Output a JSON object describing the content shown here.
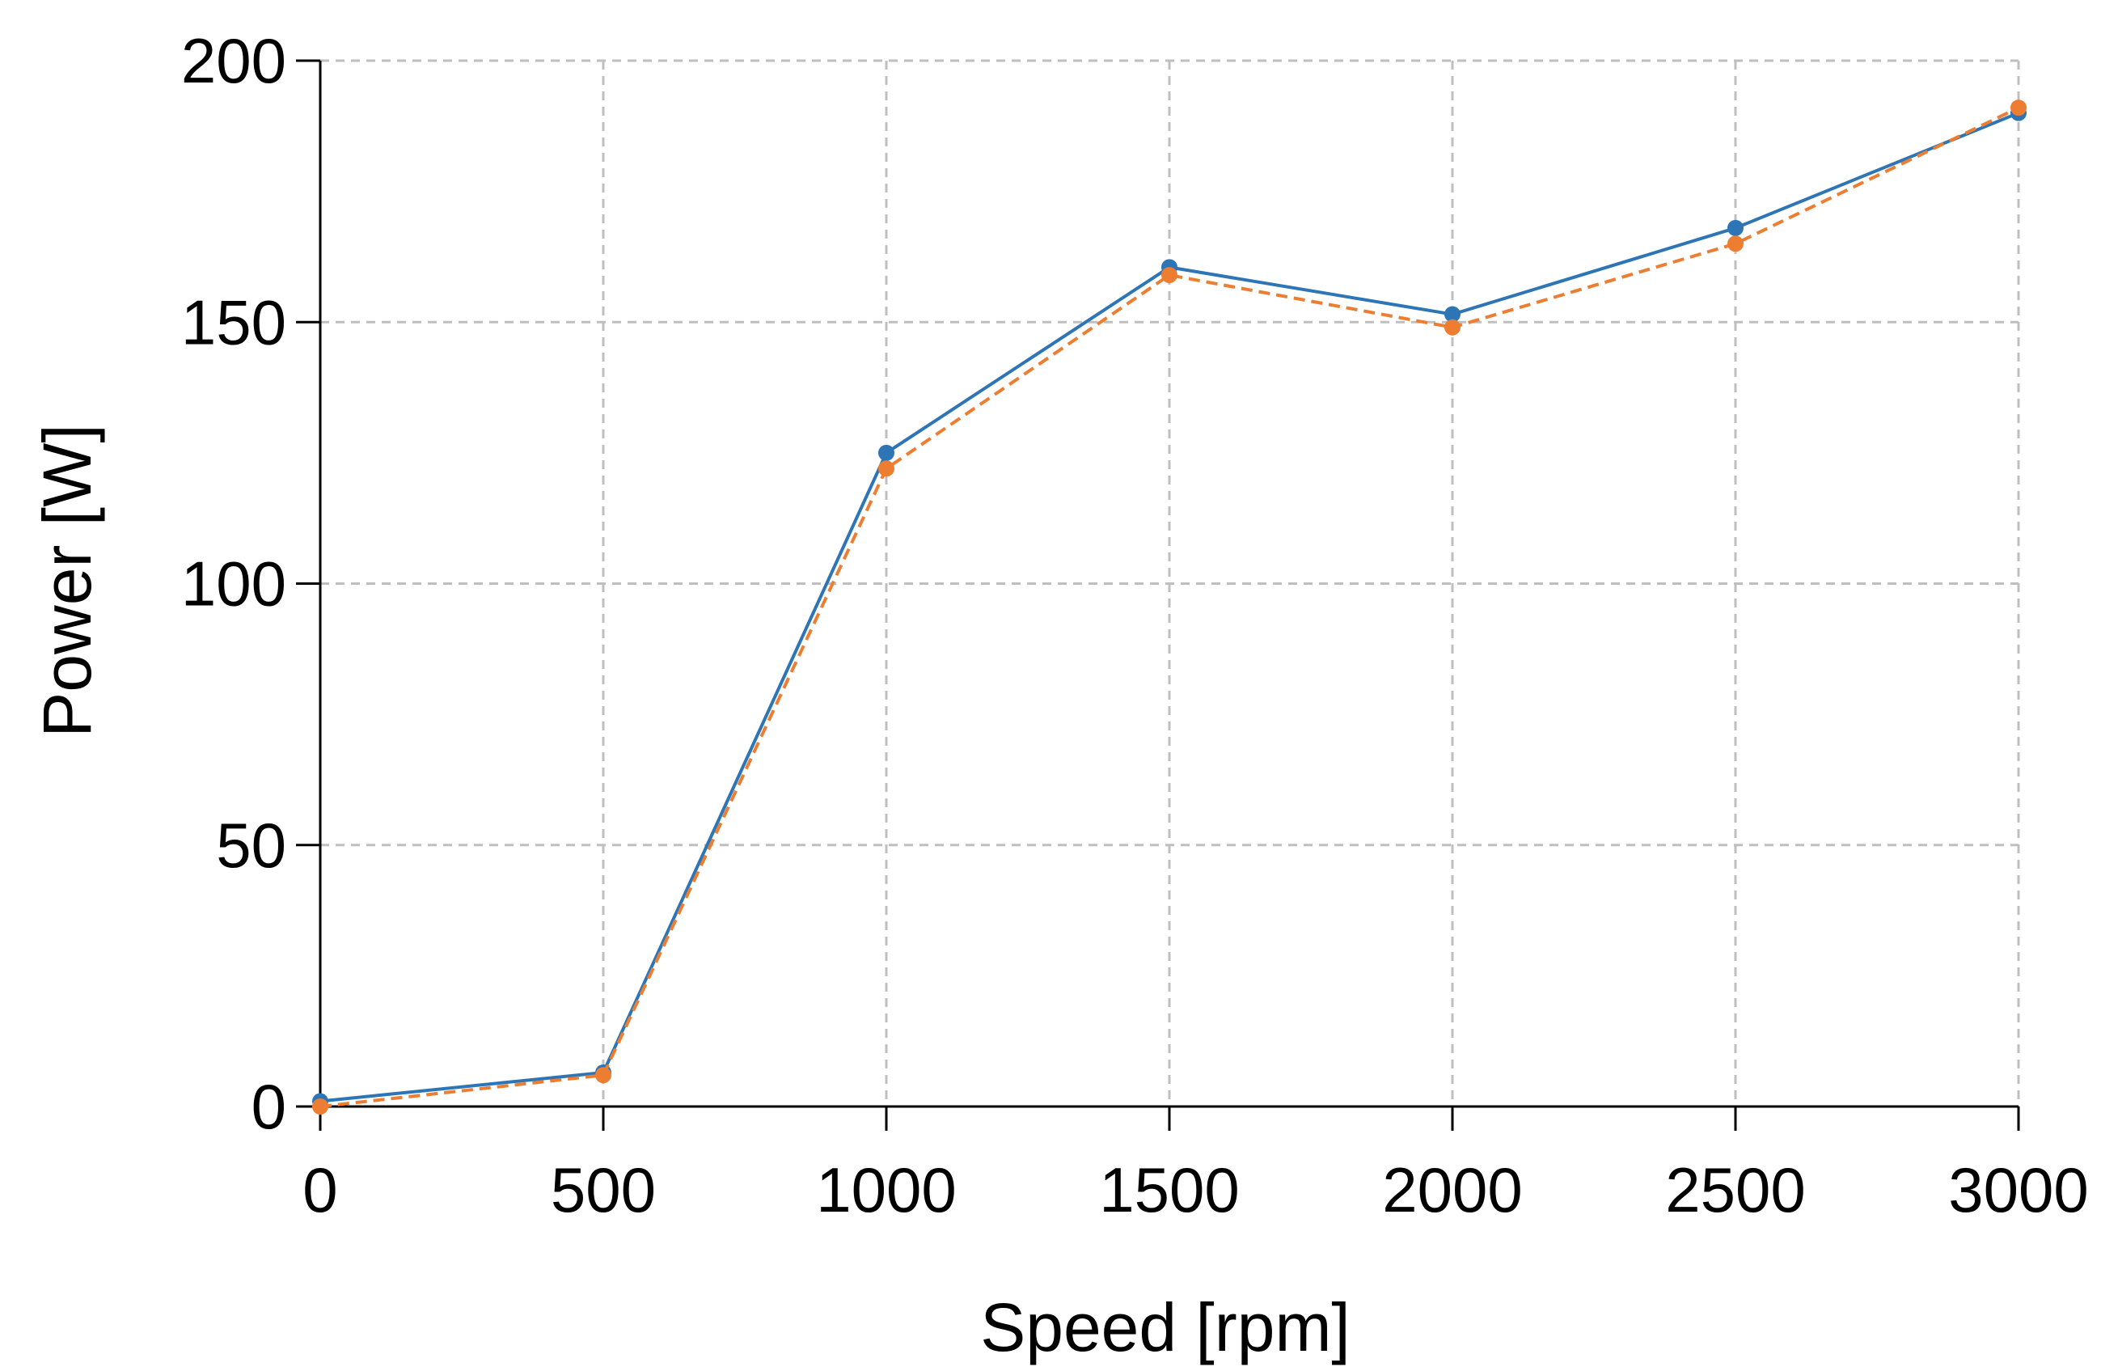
{
  "chart_data": {
    "type": "line",
    "title": "",
    "xlabel": "Speed [rpm]",
    "ylabel": "Power [W]",
    "xlim": [
      0,
      3000
    ],
    "ylim": [
      0,
      200
    ],
    "xticks": [
      0,
      500,
      1000,
      1500,
      2000,
      2500,
      3000
    ],
    "yticks": [
      0,
      50,
      100,
      150,
      200
    ],
    "xtick_labels": [
      "0",
      "500",
      "1000",
      "1500",
      "2000",
      "2500",
      "3000"
    ],
    "ytick_labels": [
      "0",
      "50",
      "100",
      "150",
      "200"
    ],
    "grid": true,
    "legend": "none",
    "x": [
      0,
      500,
      1000,
      1500,
      2000,
      2500,
      3000
    ],
    "series": [
      {
        "values": [
          1,
          6.5,
          125,
          160.5,
          151.5,
          168,
          190
        ],
        "color": "#2E75B6",
        "line_style": "solid"
      },
      {
        "values": [
          0,
          6,
          122,
          159,
          149,
          165,
          191
        ],
        "color": "#ED7D31",
        "line_style": "dashed"
      }
    ]
  }
}
